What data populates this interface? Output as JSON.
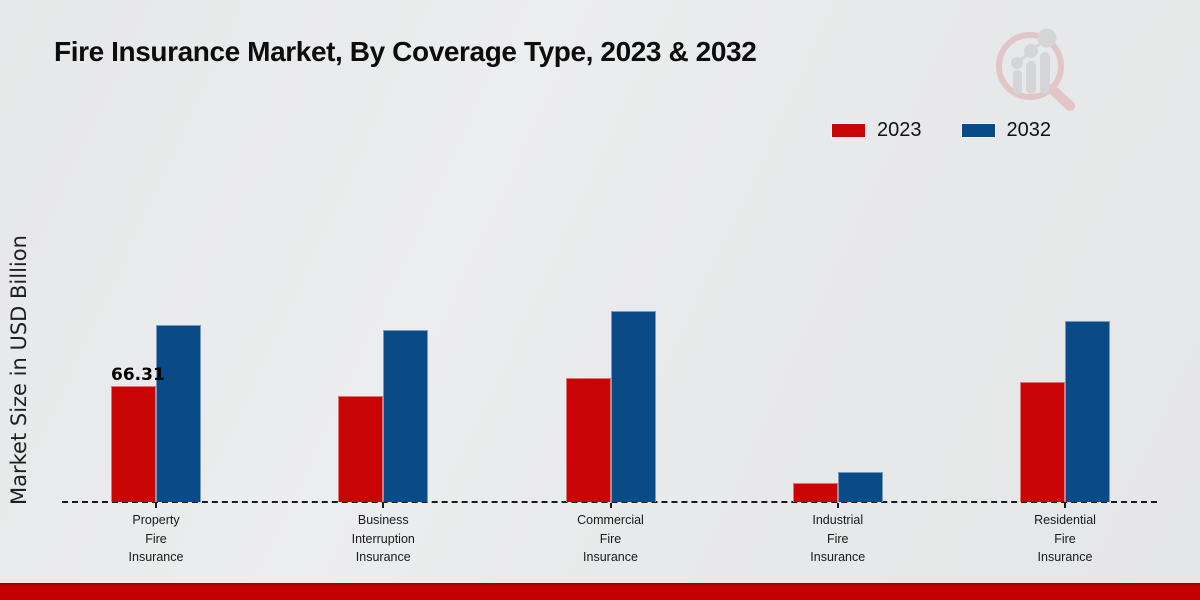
{
  "title": "Fire Insurance Market, By Coverage Type, 2023 & 2032",
  "y_axis_label": "Market Size in USD Billion",
  "legend": {
    "position": "top-right",
    "items": [
      {
        "label": "2023",
        "color": "#c80404"
      },
      {
        "label": "2032",
        "color": "#094a87"
      }
    ]
  },
  "annotation_label": "66.31",
  "chart_data": {
    "type": "bar",
    "title": "Fire Insurance Market, By Coverage Type, 2023 & 2032",
    "xlabel": "",
    "ylabel": "Market Size in USD Billion",
    "categories": [
      "Property Fire Insurance",
      "Business Interruption Insurance",
      "Commercial Fire Insurance",
      "Industrial Fire Insurance",
      "Residential Fire Insurance"
    ],
    "category_lines": [
      [
        "Property",
        "Fire",
        "Insurance"
      ],
      [
        "Business",
        "Interruption",
        "Insurance"
      ],
      [
        "Commercial",
        "Fire",
        "Insurance"
      ],
      [
        "Industrial",
        "Fire",
        "Insurance"
      ],
      [
        "Residential",
        "Fire",
        "Insurance"
      ]
    ],
    "series": [
      {
        "name": "2023",
        "color": "#c80404",
        "values": [
          66.31,
          60.6,
          70.9,
          10.9,
          68.6
        ]
      },
      {
        "name": "2032",
        "color": "#094a87",
        "values": [
          101.2,
          98.3,
          109.2,
          17.1,
          103.5
        ]
      }
    ],
    "data_labels": [
      {
        "series": "2023",
        "category": "Property Fire Insurance",
        "text": "66.31"
      }
    ],
    "ylim": [
      0,
      115
    ],
    "grid": false,
    "baseline_style": "dashed",
    "legend_position": "top-right"
  },
  "watermark_name": "market-research-magnifier-logo",
  "footer": {
    "bar_color": "#c50000"
  }
}
